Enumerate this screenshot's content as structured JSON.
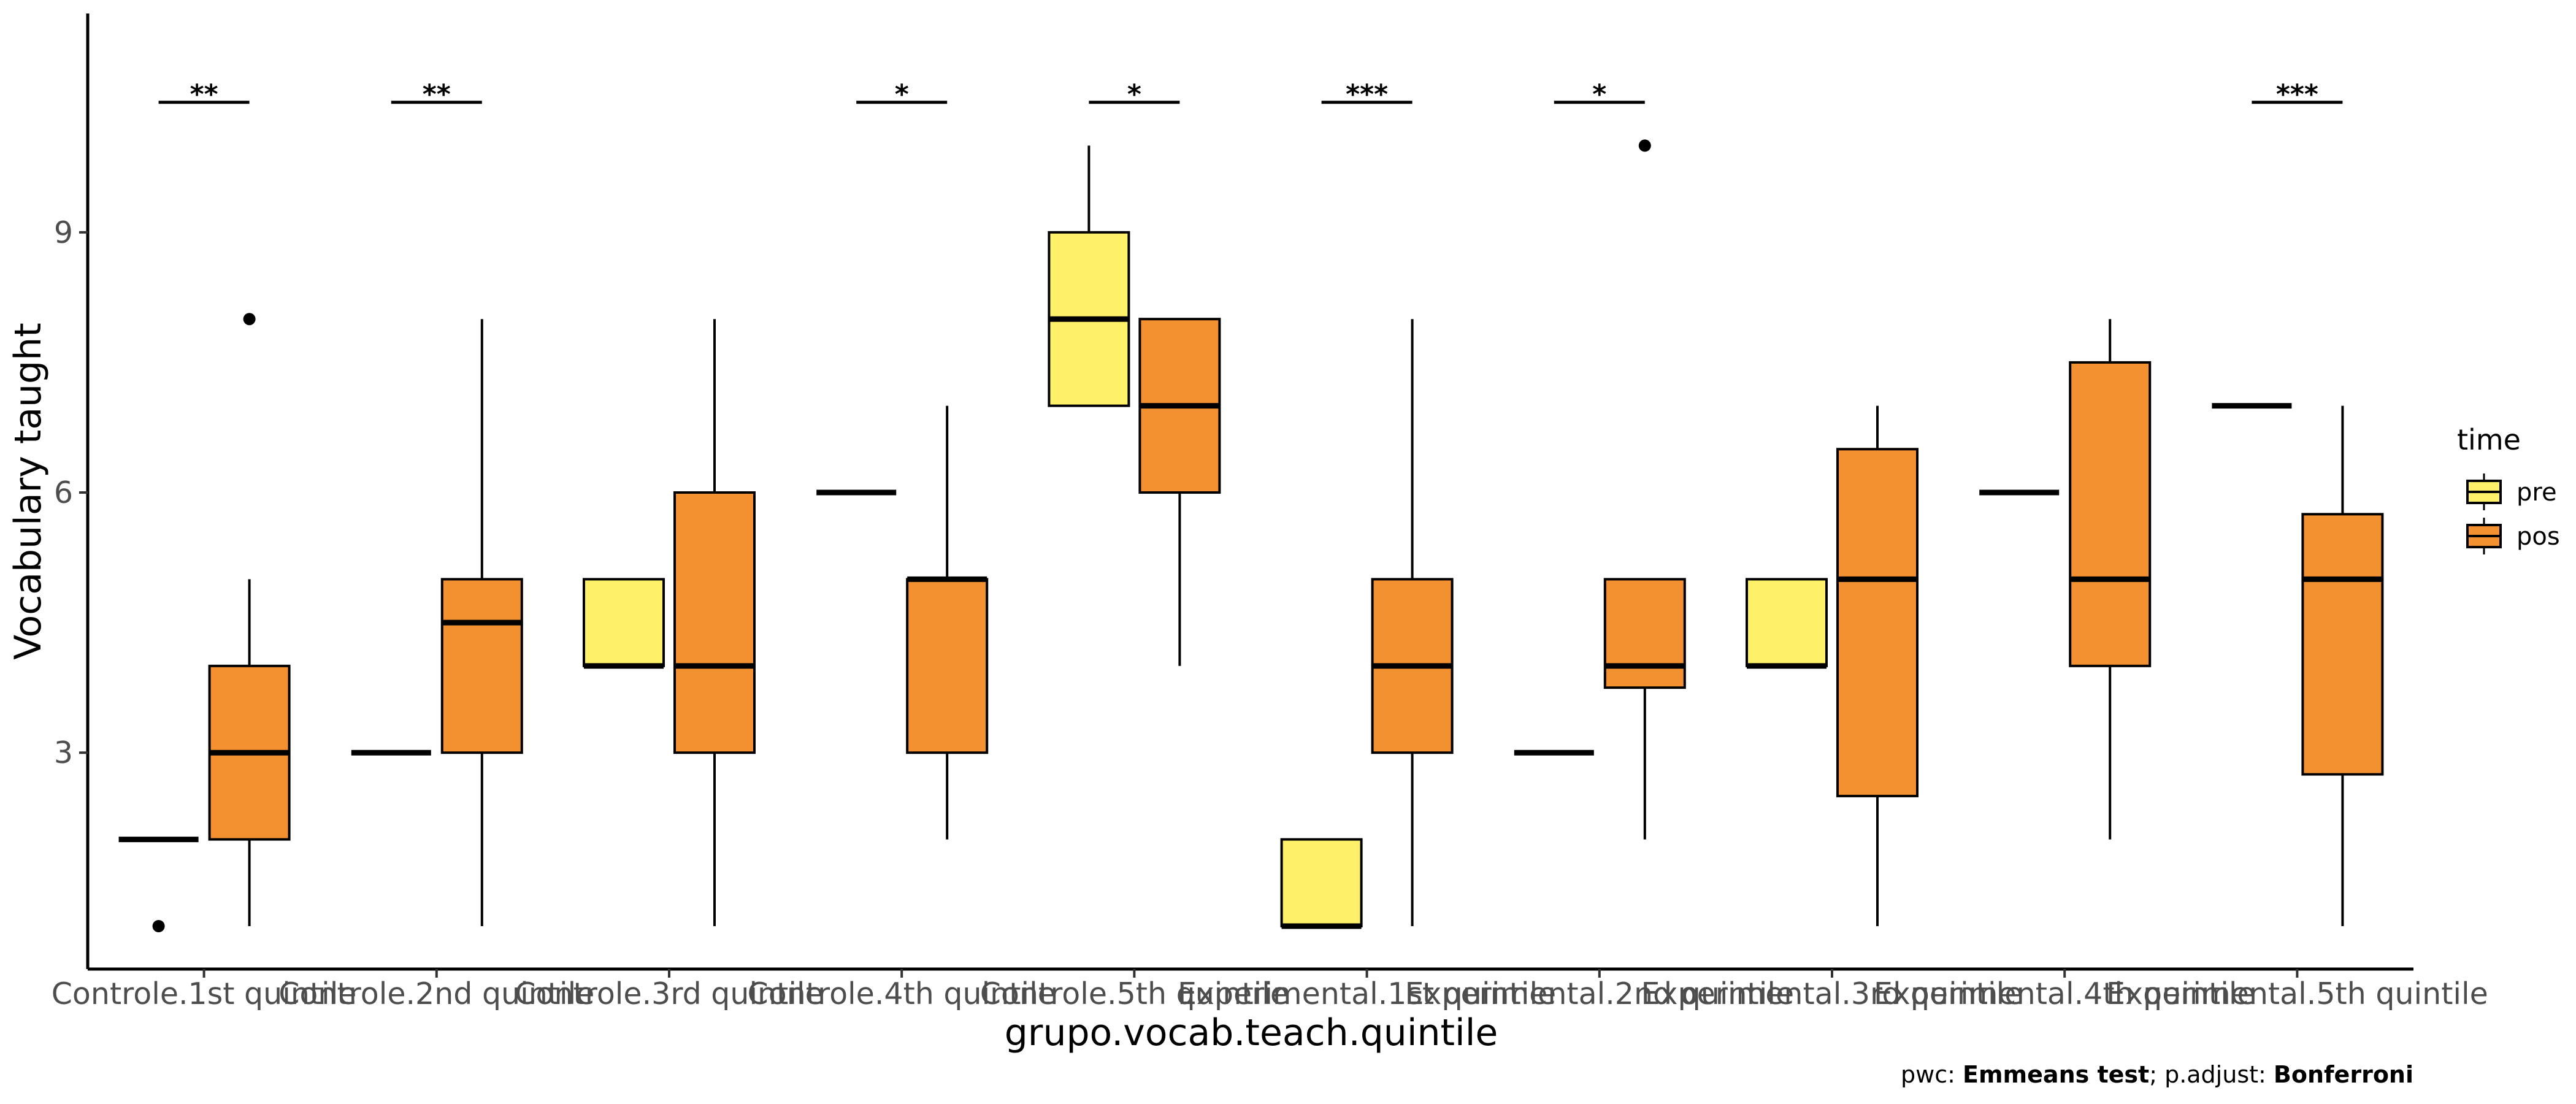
{
  "chart_data": {
    "type": "boxplot",
    "xlabel": "grupo.vocab.teach.quintile",
    "ylabel": "Vocabulary taught",
    "ylim": [
      0.5,
      11.2
    ],
    "yticks": [
      3,
      6,
      9
    ],
    "grid": false,
    "legend": {
      "title": "time",
      "placement": "right",
      "entries": [
        {
          "name": "pre",
          "color": "#FFF06A"
        },
        {
          "name": "pos",
          "color": "#F39030"
        }
      ]
    },
    "categories": [
      "Controle.1st quintile",
      "Controle.2nd quintile",
      "Controle.3rd quintile",
      "Controle.4th quintile",
      "Controle.5th quintile",
      "Experimental.1st quintile",
      "Experimental.2nd quintile",
      "Experimental.3rd quintile",
      "Experimental.4th quintile",
      "Experimental.5th quintile"
    ],
    "series": [
      {
        "name": "pre",
        "color": "#FFF06A",
        "boxes": [
          {
            "q1": 2,
            "median": 2,
            "q3": 2,
            "whisker_low": 2,
            "whisker_high": 2,
            "outliers": [
              1
            ]
          },
          {
            "q1": 3,
            "median": 3,
            "q3": 3,
            "whisker_low": 3,
            "whisker_high": 3,
            "outliers": []
          },
          {
            "q1": 4,
            "median": 4,
            "q3": 5,
            "whisker_low": 4,
            "whisker_high": 5,
            "outliers": []
          },
          {
            "q1": 6,
            "median": 6,
            "q3": 6,
            "whisker_low": 6,
            "whisker_high": 6,
            "outliers": []
          },
          {
            "q1": 7,
            "median": 8,
            "q3": 9,
            "whisker_low": 7,
            "whisker_high": 10,
            "outliers": []
          },
          {
            "q1": 1,
            "median": 1,
            "q3": 2,
            "whisker_low": 1,
            "whisker_high": 2,
            "outliers": []
          },
          {
            "q1": 3,
            "median": 3,
            "q3": 3,
            "whisker_low": 3,
            "whisker_high": 3,
            "outliers": []
          },
          {
            "q1": 4,
            "median": 4,
            "q3": 5,
            "whisker_low": 4,
            "whisker_high": 5,
            "outliers": []
          },
          {
            "q1": 6,
            "median": 6,
            "q3": 6,
            "whisker_low": 6,
            "whisker_high": 6,
            "outliers": []
          },
          {
            "q1": 7,
            "median": 7,
            "q3": 7,
            "whisker_low": 7,
            "whisker_high": 7,
            "outliers": []
          }
        ]
      },
      {
        "name": "pos",
        "color": "#F39030",
        "boxes": [
          {
            "q1": 2,
            "median": 3,
            "q3": 4,
            "whisker_low": 1,
            "whisker_high": 5,
            "outliers": [
              8
            ]
          },
          {
            "q1": 3,
            "median": 4.5,
            "q3": 5,
            "whisker_low": 1,
            "whisker_high": 8,
            "outliers": []
          },
          {
            "q1": 3,
            "median": 4,
            "q3": 6,
            "whisker_low": 1,
            "whisker_high": 8,
            "outliers": []
          },
          {
            "q1": 3,
            "median": 5,
            "q3": 5,
            "whisker_low": 2,
            "whisker_high": 7,
            "outliers": []
          },
          {
            "q1": 6,
            "median": 7,
            "q3": 8,
            "whisker_low": 4,
            "whisker_high": 8,
            "outliers": []
          },
          {
            "q1": 3,
            "median": 4,
            "q3": 5,
            "whisker_low": 1,
            "whisker_high": 8,
            "outliers": []
          },
          {
            "q1": 3.75,
            "median": 4,
            "q3": 5,
            "whisker_low": 2,
            "whisker_high": 5,
            "outliers": [
              10
            ]
          },
          {
            "q1": 2.5,
            "median": 5,
            "q3": 6.5,
            "whisker_low": 1,
            "whisker_high": 7,
            "outliers": []
          },
          {
            "q1": 4,
            "median": 5,
            "q3": 7.5,
            "whisker_low": 2,
            "whisker_high": 8,
            "outliers": []
          },
          {
            "q1": 2.75,
            "median": 5,
            "q3": 5.75,
            "whisker_low": 1,
            "whisker_high": 7,
            "outliers": []
          }
        ]
      }
    ],
    "significance": {
      "y": 10.5,
      "labels": [
        "**",
        "**",
        "",
        "*",
        "*",
        "***",
        "*",
        "",
        "",
        "***"
      ]
    },
    "caption": {
      "prefix": "pwc: ",
      "test": "Emmeans test",
      "middle": "; p.adjust: ",
      "method": "Bonferroni"
    }
  }
}
